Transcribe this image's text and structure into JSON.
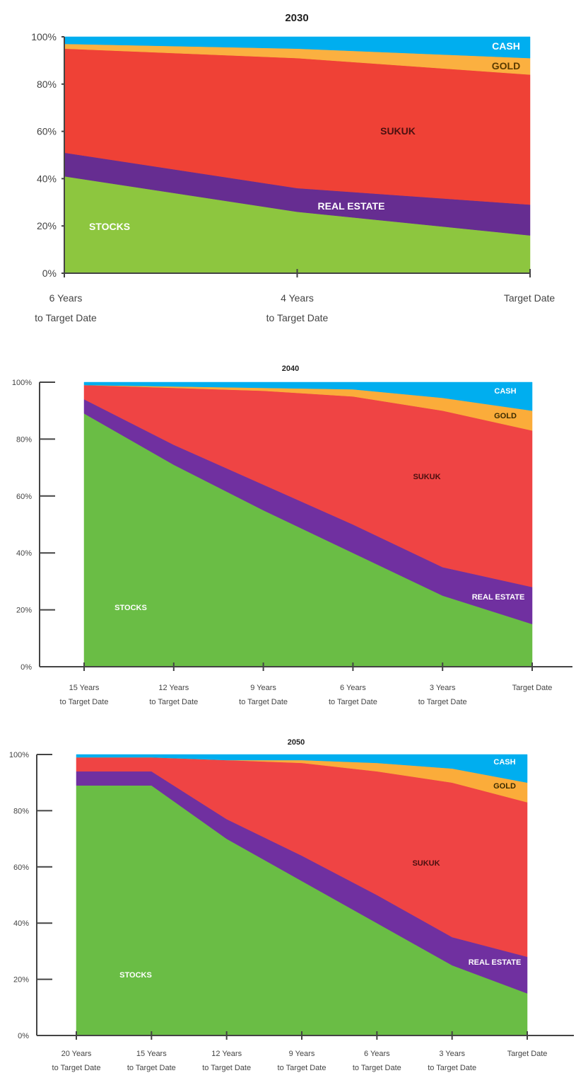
{
  "chart_data": [
    {
      "type": "area",
      "stacked": true,
      "title": "2030",
      "y_ticks": [
        "0%",
        "20%",
        "40%",
        "60%",
        "80%",
        "100%"
      ],
      "ylim": [
        0,
        100
      ],
      "x_labels": [
        [
          "6 Years",
          "to Target Date"
        ],
        [
          "4 Years",
          "to Target Date"
        ],
        [
          "Target Date"
        ]
      ],
      "x": [
        6,
        4,
        0
      ],
      "series": [
        {
          "name": "STOCKS",
          "color": "#8dc63f",
          "values": [
            41,
            26,
            16
          ]
        },
        {
          "name": "REAL ESTATE",
          "color": "#662d91",
          "values": [
            10,
            10,
            13
          ]
        },
        {
          "name": "SUKUK",
          "color": "#ef4136",
          "values": [
            44,
            55,
            55
          ]
        },
        {
          "name": "GOLD",
          "color": "#fbb040",
          "values": [
            2,
            4,
            7
          ]
        },
        {
          "name": "CASH",
          "color": "#00aeef",
          "values": [
            3,
            5,
            9
          ]
        }
      ],
      "grid": false
    },
    {
      "type": "area",
      "stacked": true,
      "title": "2040",
      "y_ticks": [
        "0%",
        "20%",
        "40%",
        "60%",
        "80%",
        "100%"
      ],
      "ylim": [
        0,
        100
      ],
      "x_labels": [
        [
          "15 Years",
          "to Target Date"
        ],
        [
          "12 Years",
          "to Target Date"
        ],
        [
          "9 Years",
          "to Target Date"
        ],
        [
          "6 Years",
          "to Target Date"
        ],
        [
          "3 Years",
          "to Target Date"
        ],
        [
          "Target Date"
        ]
      ],
      "x": [
        15,
        12,
        9,
        6,
        3,
        0
      ],
      "series": [
        {
          "name": "STOCKS",
          "color": "#6abd45",
          "values": [
            89,
            71,
            55,
            40,
            25,
            15
          ]
        },
        {
          "name": "REAL ESTATE",
          "color": "#7030a0",
          "values": [
            5,
            7,
            9,
            10,
            10,
            13
          ]
        },
        {
          "name": "SUKUK",
          "color": "#ef4444",
          "values": [
            5,
            20,
            33,
            45,
            55,
            55
          ]
        },
        {
          "name": "GOLD",
          "color": "#fbac3a",
          "values": [
            0,
            0.5,
            1,
            2.5,
            4.5,
            7
          ]
        },
        {
          "name": "CASH",
          "color": "#00aeef",
          "values": [
            1,
            1.5,
            2,
            2.5,
            5.5,
            10
          ]
        }
      ],
      "grid": false
    },
    {
      "type": "area",
      "stacked": true,
      "title": "2050",
      "y_ticks": [
        "0%",
        "20%",
        "40%",
        "60%",
        "80%",
        "100%"
      ],
      "ylim": [
        0,
        100
      ],
      "x_labels": [
        [
          "20 Years",
          "to Target Date"
        ],
        [
          "15 Years",
          "to Target Date"
        ],
        [
          "12 Years",
          "to Target Date"
        ],
        [
          "9 Years",
          "to Target Date"
        ],
        [
          "6 Years",
          "to Target Date"
        ],
        [
          "3 Years",
          "to Target Date"
        ],
        [
          "Target Date"
        ]
      ],
      "x": [
        20,
        15,
        12,
        9,
        6,
        3,
        0
      ],
      "series": [
        {
          "name": "STOCKS",
          "color": "#6abd45",
          "values": [
            89,
            89,
            70,
            55,
            40,
            25,
            15
          ]
        },
        {
          "name": "REAL ESTATE",
          "color": "#7030a0",
          "values": [
            5,
            5,
            7,
            9,
            10,
            10,
            13
          ]
        },
        {
          "name": "SUKUK",
          "color": "#ef4444",
          "values": [
            5,
            5,
            21,
            33,
            44,
            55,
            55
          ]
        },
        {
          "name": "GOLD",
          "color": "#fbac3a",
          "values": [
            0,
            0,
            0,
            1,
            3,
            5,
            7
          ]
        },
        {
          "name": "CASH",
          "color": "#00aeef",
          "values": [
            1,
            1,
            2,
            2,
            3,
            5,
            10
          ]
        }
      ],
      "grid": false
    }
  ]
}
